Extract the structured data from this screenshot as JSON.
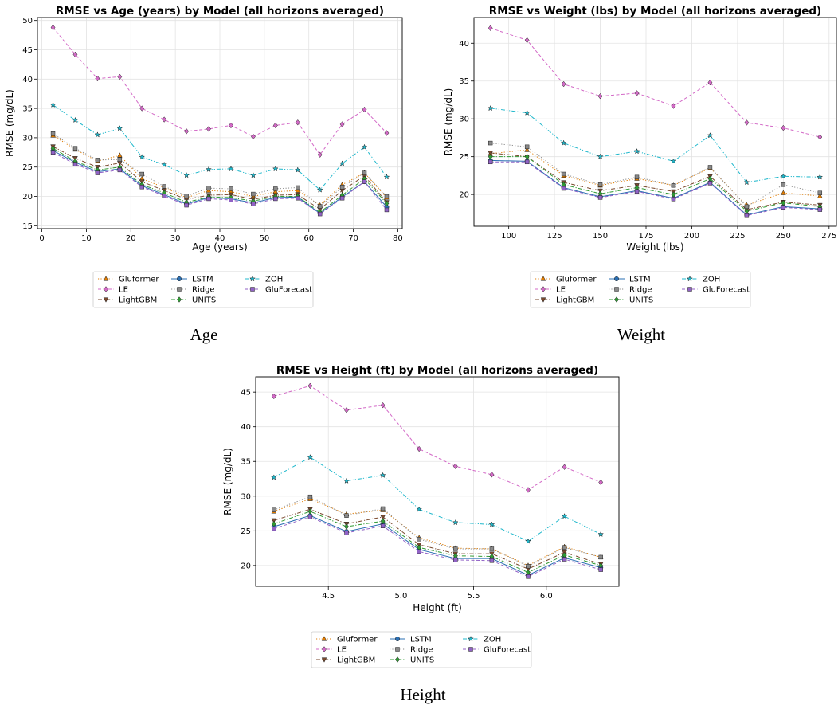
{
  "legend_order": [
    "Gluformer",
    "LE",
    "LightGBM",
    "LSTM",
    "Ridge",
    "UNITS",
    "ZOH",
    "GluForecast"
  ],
  "series_styles": {
    "Gluformer": {
      "color": "#e07b00",
      "marker": "triangle-up",
      "dash": "dotted"
    },
    "LE": {
      "color": "#d36ac7",
      "marker": "diamond",
      "dash": "dashed"
    },
    "LightGBM": {
      "color": "#7a4a2e",
      "marker": "triangle-down",
      "dash": "dashdot"
    },
    "LSTM": {
      "color": "#2a6fb3",
      "marker": "circle",
      "dash": "solid"
    },
    "Ridge": {
      "color": "#8a8a8a",
      "marker": "square",
      "dash": "dotted"
    },
    "UNITS": {
      "color": "#2f9a33",
      "marker": "diamond",
      "dash": "dashdot"
    },
    "ZOH": {
      "color": "#20b8cc",
      "marker": "star",
      "dash": "dashdotdot"
    },
    "GluForecast": {
      "color": "#9162c6",
      "marker": "square",
      "dash": "dashed"
    }
  },
  "chart_data": [
    {
      "type": "line",
      "title": "RMSE vs Age (years) by Model (all horizons averaged)",
      "caption": "Age",
      "xlabel": "Age (years)",
      "ylabel": "RMSE (mg/dL)",
      "xlim": [
        -1,
        81
      ],
      "ylim": [
        14.5,
        50.5
      ],
      "xticks": [
        0,
        10,
        20,
        30,
        40,
        50,
        60,
        70,
        80
      ],
      "yticks": [
        15,
        20,
        25,
        30,
        35,
        40,
        45,
        50
      ],
      "grid": true,
      "legend_position": "below",
      "x": [
        2.5,
        7.5,
        12.5,
        17.5,
        22.5,
        27.5,
        32.5,
        37.5,
        42.5,
        47.5,
        52.5,
        57.5,
        62.5,
        67.5,
        72.5,
        77.5
      ],
      "series": [
        {
          "name": "Gluformer",
          "values": [
            30.4,
            28.0,
            26.0,
            27.0,
            23.0,
            21.5,
            19.8,
            21.0,
            20.8,
            20.0,
            20.8,
            21.0,
            18.5,
            22.0,
            24.0,
            19.8
          ]
        },
        {
          "name": "LE",
          "values": [
            48.8,
            44.2,
            40.1,
            40.4,
            35.0,
            33.1,
            31.1,
            31.5,
            32.1,
            30.2,
            32.1,
            32.6,
            27.1,
            32.3,
            34.8,
            30.8
          ]
        },
        {
          "name": "LightGBM",
          "values": [
            28.5,
            26.5,
            25.0,
            25.7,
            22.5,
            21.0,
            19.5,
            20.2,
            20.3,
            19.5,
            20.2,
            20.3,
            17.8,
            21.0,
            23.5,
            19.0
          ]
        },
        {
          "name": "LSTM",
          "values": [
            27.8,
            25.8,
            24.2,
            24.7,
            21.8,
            20.3,
            18.7,
            19.8,
            19.6,
            18.9,
            19.8,
            19.9,
            17.1,
            19.9,
            22.5,
            18.2
          ]
        },
        {
          "name": "Ridge",
          "values": [
            30.7,
            28.2,
            26.2,
            26.3,
            23.8,
            21.7,
            20.1,
            21.4,
            21.3,
            20.4,
            21.3,
            21.5,
            18.3,
            21.6,
            24.0,
            20.0
          ]
        },
        {
          "name": "UNITS",
          "values": [
            28.2,
            26.0,
            24.5,
            25.0,
            22.0,
            20.6,
            19.0,
            19.9,
            19.8,
            19.2,
            20.0,
            20.0,
            17.3,
            20.2,
            23.0,
            18.8
          ]
        },
        {
          "name": "ZOH",
          "values": [
            35.6,
            33.0,
            30.5,
            31.6,
            26.7,
            25.4,
            23.6,
            24.6,
            24.7,
            23.6,
            24.7,
            24.5,
            21.1,
            25.6,
            28.4,
            23.3
          ]
        },
        {
          "name": "GluForecast",
          "values": [
            27.5,
            25.5,
            24.0,
            24.5,
            21.6,
            20.1,
            18.5,
            19.6,
            19.4,
            18.7,
            19.6,
            19.7,
            17.0,
            19.7,
            22.5,
            17.7
          ]
        }
      ]
    },
    {
      "type": "line",
      "title": "RMSE vs Weight (lbs) by Model (all horizons averaged)",
      "caption": "Weight",
      "xlabel": "Weight (lbs)",
      "ylabel": "RMSE (mg/dL)",
      "xlim": [
        81,
        279
      ],
      "ylim": [
        15.8,
        43.4
      ],
      "xticks": [
        100,
        125,
        150,
        175,
        200,
        225,
        250,
        275
      ],
      "yticks": [
        20,
        25,
        30,
        35,
        40
      ],
      "grid": true,
      "legend_position": "below",
      "x": [
        90,
        110,
        130,
        150,
        170,
        190,
        210,
        230,
        250,
        270
      ],
      "series": [
        {
          "name": "Gluformer",
          "values": [
            25.4,
            25.9,
            22.5,
            21.2,
            22.1,
            21.2,
            23.5,
            18.6,
            20.2,
            19.8
          ]
        },
        {
          "name": "LE",
          "values": [
            42.0,
            40.4,
            34.6,
            33.0,
            33.4,
            31.7,
            34.8,
            29.5,
            28.8,
            27.6
          ]
        },
        {
          "name": "LightGBM",
          "values": [
            25.5,
            25.0,
            21.6,
            20.5,
            21.2,
            20.4,
            22.4,
            18.0,
            19.0,
            18.6
          ]
        },
        {
          "name": "LSTM",
          "values": [
            24.5,
            24.4,
            20.9,
            19.7,
            20.5,
            19.5,
            21.6,
            17.3,
            18.4,
            18.1
          ]
        },
        {
          "name": "Ridge",
          "values": [
            26.8,
            26.3,
            22.7,
            21.3,
            22.3,
            21.2,
            23.6,
            18.4,
            21.3,
            20.2
          ]
        },
        {
          "name": "UNITS",
          "values": [
            25.0,
            25.0,
            21.3,
            20.1,
            20.9,
            20.0,
            22.1,
            17.8,
            18.9,
            18.4
          ]
        },
        {
          "name": "ZOH",
          "values": [
            31.4,
            30.8,
            26.8,
            25.0,
            25.7,
            24.4,
            27.8,
            21.6,
            22.4,
            22.3
          ]
        },
        {
          "name": "GluForecast",
          "values": [
            24.3,
            24.3,
            20.8,
            19.6,
            20.4,
            19.4,
            21.5,
            17.2,
            18.3,
            18.0
          ]
        }
      ]
    },
    {
      "type": "line",
      "title": "RMSE vs Height (ft) by Model (all horizons averaged)",
      "caption": "Height",
      "xlabel": "Height (ft)",
      "ylabel": "RMSE (mg/dL)",
      "xlim": [
        4.0,
        6.5
      ],
      "ylim": [
        17.0,
        47.2
      ],
      "xticks": [
        4.5,
        5.0,
        5.5,
        6.0
      ],
      "xtick_labels": [
        "4.5",
        "5.0",
        "5.5",
        "6.0"
      ],
      "yticks": [
        20,
        25,
        30,
        35,
        40,
        45
      ],
      "grid": true,
      "legend_position": "below",
      "x": [
        4.125,
        4.375,
        4.625,
        4.875,
        5.125,
        5.375,
        5.625,
        5.875,
        6.125,
        6.375
      ],
      "series": [
        {
          "name": "Gluformer",
          "values": [
            27.8,
            29.6,
            27.4,
            28.0,
            24.0,
            22.5,
            22.4,
            20.0,
            22.7,
            21.2
          ]
        },
        {
          "name": "LE",
          "values": [
            44.4,
            45.9,
            42.4,
            43.1,
            36.8,
            34.3,
            33.1,
            30.9,
            34.2,
            32.0
          ]
        },
        {
          "name": "LightGBM",
          "values": [
            26.5,
            28.1,
            26.0,
            27.0,
            23.0,
            21.7,
            21.7,
            19.5,
            21.9,
            20.2
          ]
        },
        {
          "name": "LSTM",
          "values": [
            25.6,
            27.2,
            24.9,
            26.0,
            22.3,
            21.0,
            21.0,
            18.6,
            21.1,
            19.7
          ]
        },
        {
          "name": "Ridge",
          "values": [
            28.0,
            29.9,
            27.2,
            28.2,
            23.8,
            22.4,
            22.4,
            19.9,
            22.6,
            21.2
          ]
        },
        {
          "name": "UNITS",
          "values": [
            26.0,
            27.8,
            25.6,
            26.4,
            22.6,
            21.4,
            21.3,
            19.0,
            21.5,
            20.0
          ]
        },
        {
          "name": "ZOH",
          "values": [
            32.7,
            35.6,
            32.2,
            33.0,
            28.1,
            26.2,
            25.9,
            23.5,
            27.1,
            24.5
          ]
        },
        {
          "name": "GluForecast",
          "values": [
            25.3,
            27.0,
            24.7,
            25.7,
            22.0,
            20.8,
            20.7,
            18.4,
            20.9,
            19.4
          ]
        }
      ]
    }
  ]
}
